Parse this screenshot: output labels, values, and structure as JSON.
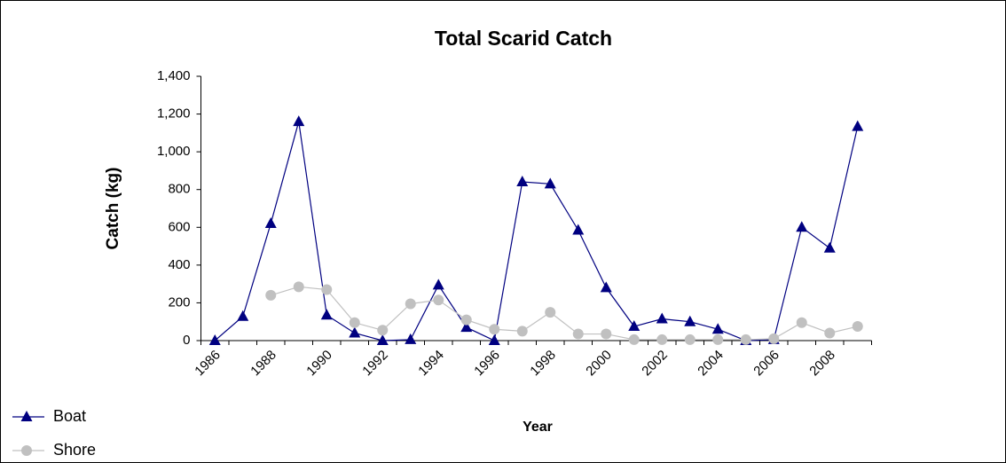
{
  "chart_data": {
    "type": "line",
    "title": "Total Scarid Catch",
    "x_label": "Year",
    "y_label": "Catch (kg)",
    "categories": [
      "1986",
      null,
      "1988",
      null,
      "1990",
      null,
      "1992",
      null,
      "1994",
      null,
      "1996",
      null,
      "1998",
      null,
      "2000",
      null,
      "2002",
      null,
      "2004",
      null,
      "2006",
      null,
      "2008",
      null
    ],
    "series": [
      {
        "name": "Boat",
        "color": "#000080",
        "marker": "triangle",
        "values": [
          0,
          128,
          620,
          1160,
          135,
          40,
          0,
          5,
          294,
          70,
          0,
          841,
          830,
          585,
          280,
          75,
          115,
          100,
          60,
          0,
          5,
          600,
          490,
          1134
        ]
      },
      {
        "name": "Shore",
        "color": "#c0c0c0",
        "marker": "circle",
        "values": [
          null,
          null,
          240,
          285,
          270,
          95,
          55,
          195,
          215,
          110,
          60,
          50,
          150,
          35,
          35,
          5,
          5,
          5,
          5,
          5,
          10,
          95,
          40,
          75
        ]
      }
    ],
    "ylim": [
      0,
      1400
    ],
    "yticks": [
      0,
      200,
      400,
      600,
      800,
      {
        "value": 1000,
        "label": "1,000"
      },
      {
        "value": 1200,
        "label": "1,200"
      },
      {
        "value": 1400,
        "label": "1,400"
      }
    ],
    "grid": false,
    "legend": "bottom-left"
  }
}
